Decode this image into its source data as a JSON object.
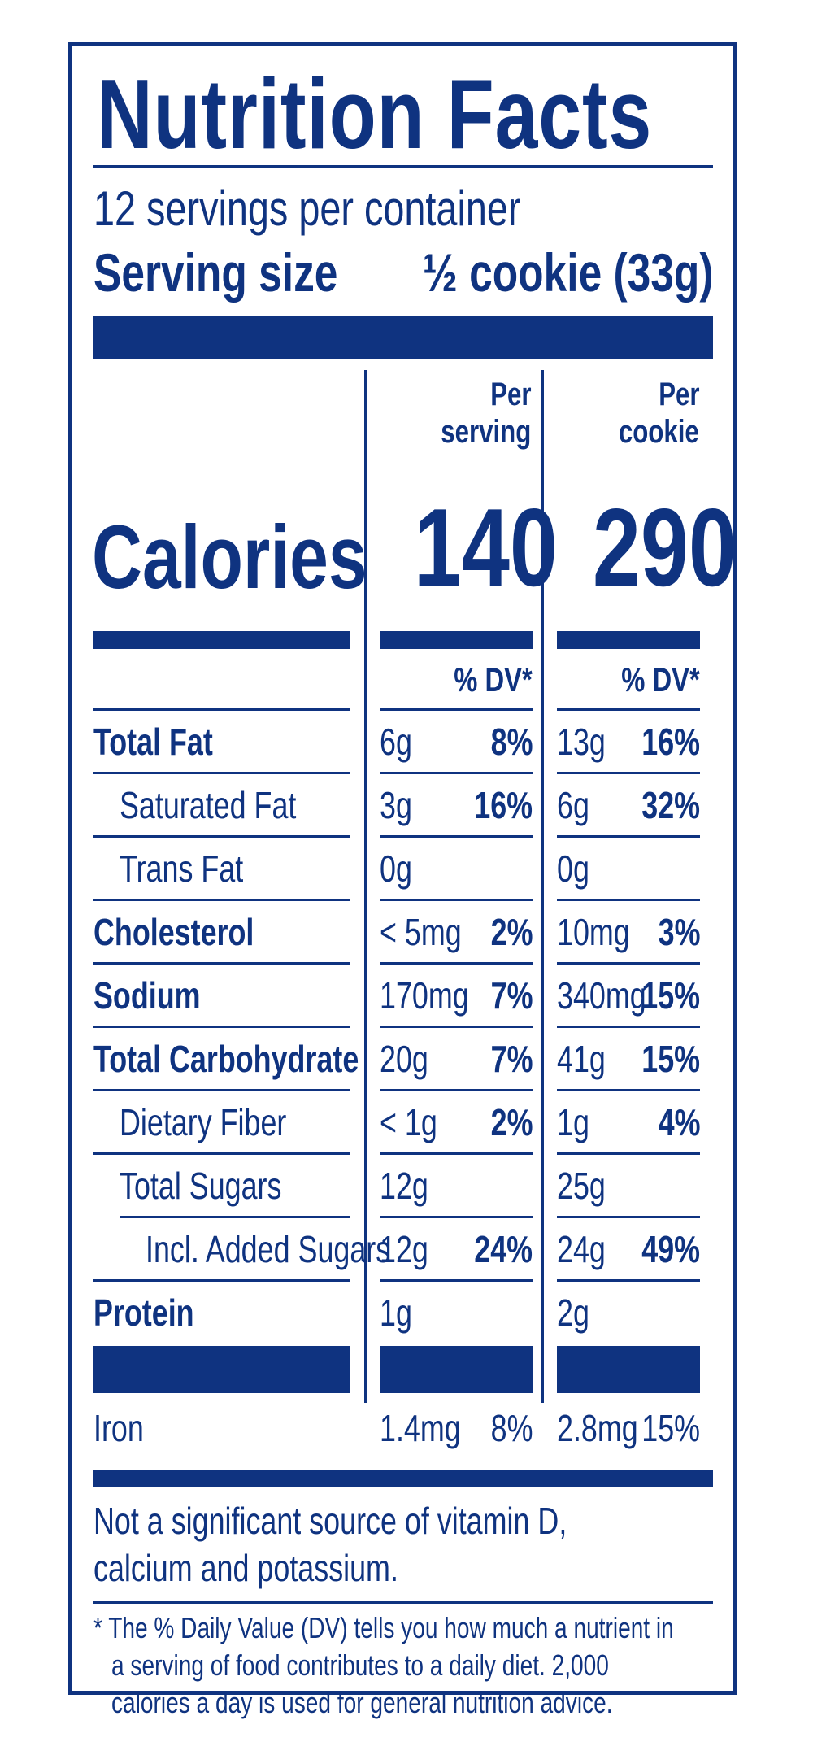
{
  "title": "Nutrition Facts",
  "servings_per_container": "12 servings per container",
  "serving_size": {
    "label": "Serving size",
    "value": "½ cookie (33g)"
  },
  "columns": [
    {
      "line1": "Per",
      "line2": "serving",
      "calories": "140"
    },
    {
      "line1": "Per",
      "line2": "cookie",
      "calories": "290"
    }
  ],
  "calories_label": "Calories",
  "dv_header": "% DV*",
  "nutrients": [
    {
      "name": "Total Fat",
      "bold": true,
      "indent": 0,
      "c1_amt": "6g",
      "c1_dv": "8%",
      "c2_amt": "13g",
      "c2_dv": "16%"
    },
    {
      "name": "Saturated Fat",
      "bold": false,
      "indent": 1,
      "c1_amt": "3g",
      "c1_dv": "16%",
      "c2_amt": "6g",
      "c2_dv": "32%"
    },
    {
      "name": "Trans Fat",
      "bold": false,
      "indent": 1,
      "c1_amt": "0g",
      "c1_dv": "",
      "c2_amt": "0g",
      "c2_dv": ""
    },
    {
      "name": "Cholesterol",
      "bold": true,
      "indent": 0,
      "c1_amt": "< 5mg",
      "c1_dv": "2%",
      "c2_amt": "10mg",
      "c2_dv": "3%"
    },
    {
      "name": "Sodium",
      "bold": true,
      "indent": 0,
      "c1_amt": "170mg",
      "c1_dv": "7%",
      "c2_amt": "340mg",
      "c2_dv": "15%"
    },
    {
      "name": "Total Carbohydrate",
      "bold": true,
      "indent": 0,
      "c1_amt": "20g",
      "c1_dv": "7%",
      "c2_amt": "41g",
      "c2_dv": "15%"
    },
    {
      "name": "Dietary Fiber",
      "bold": false,
      "indent": 1,
      "c1_amt": "< 1g",
      "c1_dv": "2%",
      "c2_amt": "1g",
      "c2_dv": "4%"
    },
    {
      "name": "Total Sugars",
      "bold": false,
      "indent": 1,
      "c1_amt": "12g",
      "c1_dv": "",
      "c2_amt": "25g",
      "c2_dv": ""
    },
    {
      "name": "Incl. Added Sugars",
      "bold": false,
      "indent": 2,
      "c1_amt": "12g",
      "c1_dv": "24%",
      "c2_amt": "24g",
      "c2_dv": "49%"
    },
    {
      "name": "Protein",
      "bold": true,
      "indent": 0,
      "c1_amt": "1g",
      "c1_dv": "",
      "c2_amt": "2g",
      "c2_dv": ""
    }
  ],
  "iron": {
    "name": "Iron",
    "c1_amt": "1.4mg",
    "c1_dv": "8%",
    "c2_amt": "2.8mg",
    "c2_dv": "15%"
  },
  "note_line1": "Not a significant source of vitamin D,",
  "note_line2": "calcium and potassium.",
  "footnote_line1": "* The % Daily Value (DV) tells you how much a nutrient in",
  "footnote_line2": "a serving of food contributes to a daily diet. 2,000",
  "footnote_line3": "calories a day is used for general nutrition advice.",
  "colors": {
    "ink": "#0f3380",
    "background": "#ffffff"
  }
}
